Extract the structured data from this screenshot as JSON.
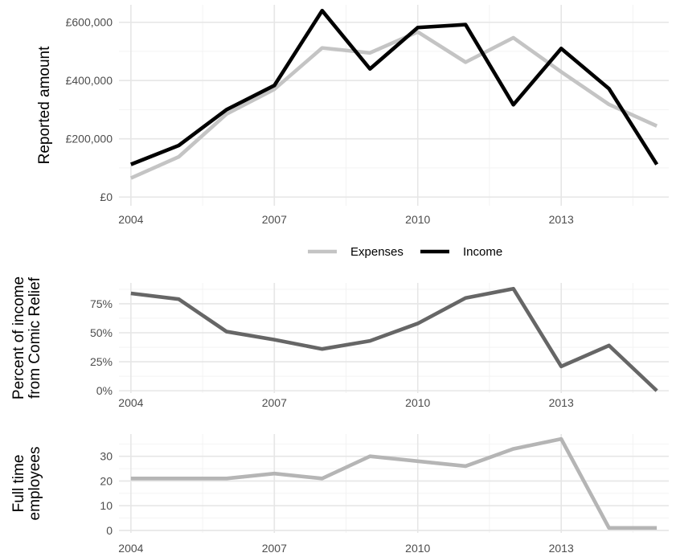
{
  "chart_data": [
    {
      "type": "line",
      "ylabel": "Reported amount",
      "x": [
        2004,
        2005,
        2006,
        2007,
        2008,
        2009,
        2010,
        2011,
        2012,
        2013,
        2014,
        2015
      ],
      "xticks": [
        "2004",
        "2007",
        "2010",
        "2013"
      ],
      "xlim": [
        2003.75,
        2015.25
      ],
      "ylim": [
        -30000,
        660000
      ],
      "yticks": [
        0,
        200000,
        400000,
        600000
      ],
      "ytick_labels": [
        "£0",
        "£200,000",
        "£400,000",
        "£600,000"
      ],
      "grid": true,
      "legend": "bottom",
      "series": [
        {
          "name": "Expenses",
          "color": "#c4c4c4",
          "values": [
            65000,
            138000,
            285000,
            370000,
            512000,
            495000,
            567000,
            463000,
            547000,
            430000,
            318000,
            244000
          ]
        },
        {
          "name": "Income",
          "color": "#000000",
          "values": [
            112000,
            177000,
            300000,
            383000,
            640000,
            440000,
            582000,
            592000,
            317000,
            510000,
            372000,
            112000
          ]
        }
      ]
    },
    {
      "type": "line",
      "ylabel": "Percent of income from Comic Relief",
      "ylabel_lines": [
        "Percent of income",
        "from Comic Relief"
      ],
      "x": [
        2004,
        2005,
        2006,
        2007,
        2008,
        2009,
        2010,
        2011,
        2012,
        2013,
        2014,
        2015
      ],
      "xticks": [
        "2004",
        "2007",
        "2010",
        "2013"
      ],
      "xlim": [
        2003.75,
        2015.25
      ],
      "ylim": [
        -0.02,
        0.93
      ],
      "yticks": [
        0,
        0.25,
        0.5,
        0.75
      ],
      "ytick_labels": [
        "0%",
        "25%",
        "50%",
        "75%"
      ],
      "grid": true,
      "series": [
        {
          "color": "#666666",
          "values": [
            0.84,
            0.79,
            0.51,
            0.44,
            0.36,
            0.43,
            0.58,
            0.8,
            0.88,
            0.21,
            0.39,
            0.0
          ]
        }
      ]
    },
    {
      "type": "line",
      "ylabel": "Full time employees",
      "ylabel_lines": [
        "Full time",
        "employees"
      ],
      "x": [
        2004,
        2005,
        2006,
        2007,
        2008,
        2009,
        2010,
        2011,
        2012,
        2013,
        2014,
        2015
      ],
      "xticks": [
        "2004",
        "2007",
        "2010",
        "2013"
      ],
      "xlim": [
        2003.75,
        2015.25
      ],
      "ylim": [
        -1,
        39
      ],
      "yticks": [
        0,
        10,
        20,
        30
      ],
      "ytick_labels": [
        "0",
        "10",
        "20",
        "30"
      ],
      "grid": true,
      "series": [
        {
          "color": "#b5b5b5",
          "values": [
            21,
            21,
            21,
            23,
            21,
            30,
            28,
            26,
            33,
            37,
            1,
            1
          ]
        }
      ]
    }
  ]
}
